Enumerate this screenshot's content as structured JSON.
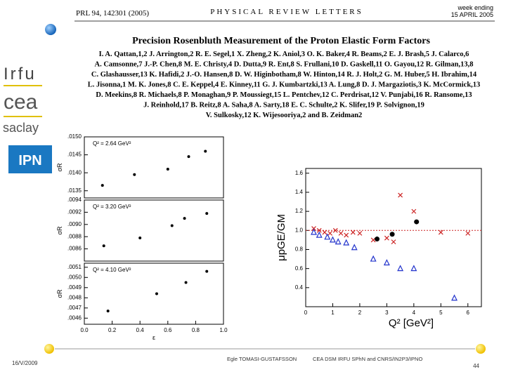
{
  "header": {
    "journal_ref": "PRL 94, 142301 (2005)",
    "journal": "PHYSICAL REVIEW LETTERS",
    "week": "week ending",
    "date": "15 APRIL 2005"
  },
  "paper": {
    "title": "Precision Rosenbluth Measurement of the Proton Elastic Form Factors",
    "authors": [
      "I. A. Qattan,1,2 J. Arrington,2 R. E. Segel,1 X. Zheng,2 K. Aniol,3 O. K. Baker,4 R. Beams,2 E. J. Brash,5 J. Calarco,6",
      "A. Camsonne,7 J.-P. Chen,8 M. E. Christy,4 D. Dutta,9 R. Ent,8 S. Frullani,10 D. Gaskell,11 O. Gayou,12 R. Gilman,13,8",
      "C. Glashausser,13 K. Hafidi,2 J.-O. Hansen,8 D. W. Higinbotham,8 W. Hinton,14 R. J. Holt,2 G. M. Huber,5 H. Ibrahim,14",
      "L. Jisonna,1 M. K. Jones,8 C. E. Keppel,4 E. Kinney,11 G. J. Kumbartzki,13 A. Lung,8 D. J. Margaziotis,3 K. McCormick,13",
      "D. Meekins,8 R. Michaels,8 P. Monaghan,9 P. Moussiegt,15 L. Pentchev,12 C. Perdrisat,12 V. Punjabi,16 R. Ransome,13",
      "J. Reinhold,17 B. Reitz,8 A. Saha,8 A. Sarty,18 E. C. Schulte,2 K. Slifer,19 P. Solvignon,19",
      "V. Sulkosky,12 K. Wijesooriya,2 and B. Zeidman2"
    ]
  },
  "logos": {
    "irfu": "Irfu",
    "cea": "cea",
    "saclay": "saclay",
    "ipn": "IPN"
  },
  "footer": {
    "date": "16/V/2009",
    "author": "Egle TOMASI-GUSTAFSSON",
    "affiliation": "CEA DSM IRFU SPhN and CNRS/IN2P3/IPNO",
    "page": "44"
  },
  "chart_data": [
    {
      "type": "scatter",
      "annotation": "Q² = 2.64 GeV²",
      "y_label": "σR",
      "xlim": [
        0,
        1
      ],
      "ylim": [
        0.0133,
        0.015
      ],
      "yticks": [
        {
          "value": 0.015,
          "label": ".0150"
        },
        {
          "value": 0.0145,
          "label": ".0145"
        },
        {
          "value": 0.014,
          "label": ".0140"
        },
        {
          "value": 0.0135,
          "label": ".0135"
        }
      ],
      "series": [
        {
          "color": "#000000",
          "x": [
            0.13,
            0.36,
            0.6,
            0.75,
            0.87
          ],
          "values": [
            0.01365,
            0.01395,
            0.0141,
            0.01445,
            0.0146
          ]
        }
      ]
    },
    {
      "type": "scatter",
      "annotation": "Q² = 3.20 GeV²",
      "y_label": "σR",
      "xlim": [
        0,
        1
      ],
      "ylim": [
        0.0084,
        0.0094
      ],
      "yticks": [
        {
          "value": 0.0094,
          "label": ".0094"
        },
        {
          "value": 0.0092,
          "label": ".0092"
        },
        {
          "value": 0.009,
          "label": ".0090"
        },
        {
          "value": 0.0088,
          "label": ".0088"
        },
        {
          "value": 0.0086,
          "label": ".0086"
        }
      ],
      "series": [
        {
          "color": "#000000",
          "x": [
            0.14,
            0.4,
            0.63,
            0.72,
            0.88
          ],
          "values": [
            0.00865,
            0.00878,
            0.00898,
            0.0091,
            0.00918
          ]
        }
      ]
    },
    {
      "type": "scatter",
      "annotation": "Q² = 4.10 GeV²",
      "y_label": "σR",
      "x_label": "ε",
      "xlim": [
        0,
        1
      ],
      "ylim": [
        0.00454,
        0.00514
      ],
      "xticks": [
        {
          "value": 0,
          "label": "0.0"
        },
        {
          "value": 0.2,
          "label": "0.2"
        },
        {
          "value": 0.4,
          "label": "0.4"
        },
        {
          "value": 0.6,
          "label": "0.6"
        },
        {
          "value": 0.8,
          "label": "0.8"
        },
        {
          "value": 1,
          "label": "1.0"
        }
      ],
      "yticks": [
        {
          "value": 0.0051,
          "label": ".0051"
        },
        {
          "value": 0.005,
          "label": ".0050"
        },
        {
          "value": 0.0049,
          "label": ".0049"
        },
        {
          "value": 0.0048,
          "label": ".0048"
        },
        {
          "value": 0.0047,
          "label": ".0047"
        },
        {
          "value": 0.0046,
          "label": ".0046"
        }
      ],
      "series": [
        {
          "color": "#000000",
          "x": [
            0.17,
            0.52,
            0.73,
            0.88
          ],
          "values": [
            0.00467,
            0.00484,
            0.00495,
            0.00506
          ]
        }
      ]
    },
    {
      "type": "scatter",
      "x_label": "Q² [GeV²]",
      "y_label": "μpGE/GM",
      "xlim": [
        0,
        6.5
      ],
      "ylim": [
        0.2,
        1.65
      ],
      "reference_line": 1,
      "xticks": [
        0,
        1,
        2,
        3,
        4,
        5,
        6
      ],
      "yticks": [
        0.4,
        0.6,
        0.8,
        {
          "value": 1,
          "label": "1.0"
        },
        1.2,
        1.4,
        1.6
      ],
      "series": [
        {
          "color": "#cc2222",
          "marker": "cross",
          "x": [
            0.3,
            0.5,
            0.7,
            0.9,
            1.1,
            1.3,
            1.5,
            1.75,
            2.0,
            2.5,
            3.0,
            3.25,
            3.5,
            4.0,
            5.0,
            6.0
          ],
          "values": [
            1.02,
            1.0,
            0.98,
            0.97,
            1.0,
            0.97,
            0.95,
            0.98,
            0.97,
            0.9,
            0.92,
            0.88,
            1.37,
            1.2,
            0.98,
            0.97
          ]
        },
        {
          "color": "#2233cc",
          "marker": "triangle",
          "x": [
            0.3,
            0.5,
            0.8,
            1.0,
            1.2,
            1.5,
            1.8,
            2.5,
            3.0,
            3.5,
            4.0,
            5.5
          ],
          "values": [
            0.98,
            0.95,
            0.93,
            0.9,
            0.88,
            0.87,
            0.82,
            0.7,
            0.66,
            0.6,
            0.6,
            0.29
          ]
        },
        {
          "color": "#000000",
          "marker": "circle",
          "x": [
            2.64,
            3.2,
            4.1
          ],
          "values": [
            0.91,
            0.96,
            1.09
          ]
        }
      ]
    }
  ]
}
